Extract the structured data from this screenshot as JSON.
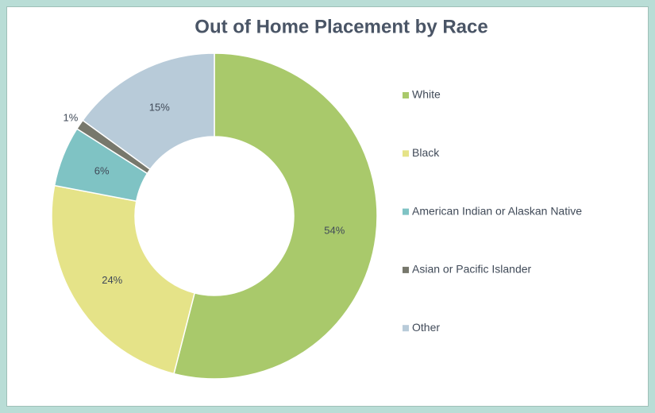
{
  "chart_data": {
    "type": "donut",
    "title": "Out of Home Placement by Race",
    "categories": [
      "White",
      "Black",
      "American Indian or Alaskan Native",
      "Asian or Pacific Islander",
      "Other"
    ],
    "values": [
      54,
      24,
      6,
      1,
      15
    ],
    "value_labels": [
      "54%",
      "24%",
      "6%",
      "1%",
      "15%"
    ],
    "colors": [
      "#a9c96b",
      "#e5e388",
      "#7fc3c4",
      "#77786c",
      "#b8cbd9"
    ],
    "legend": "right"
  }
}
